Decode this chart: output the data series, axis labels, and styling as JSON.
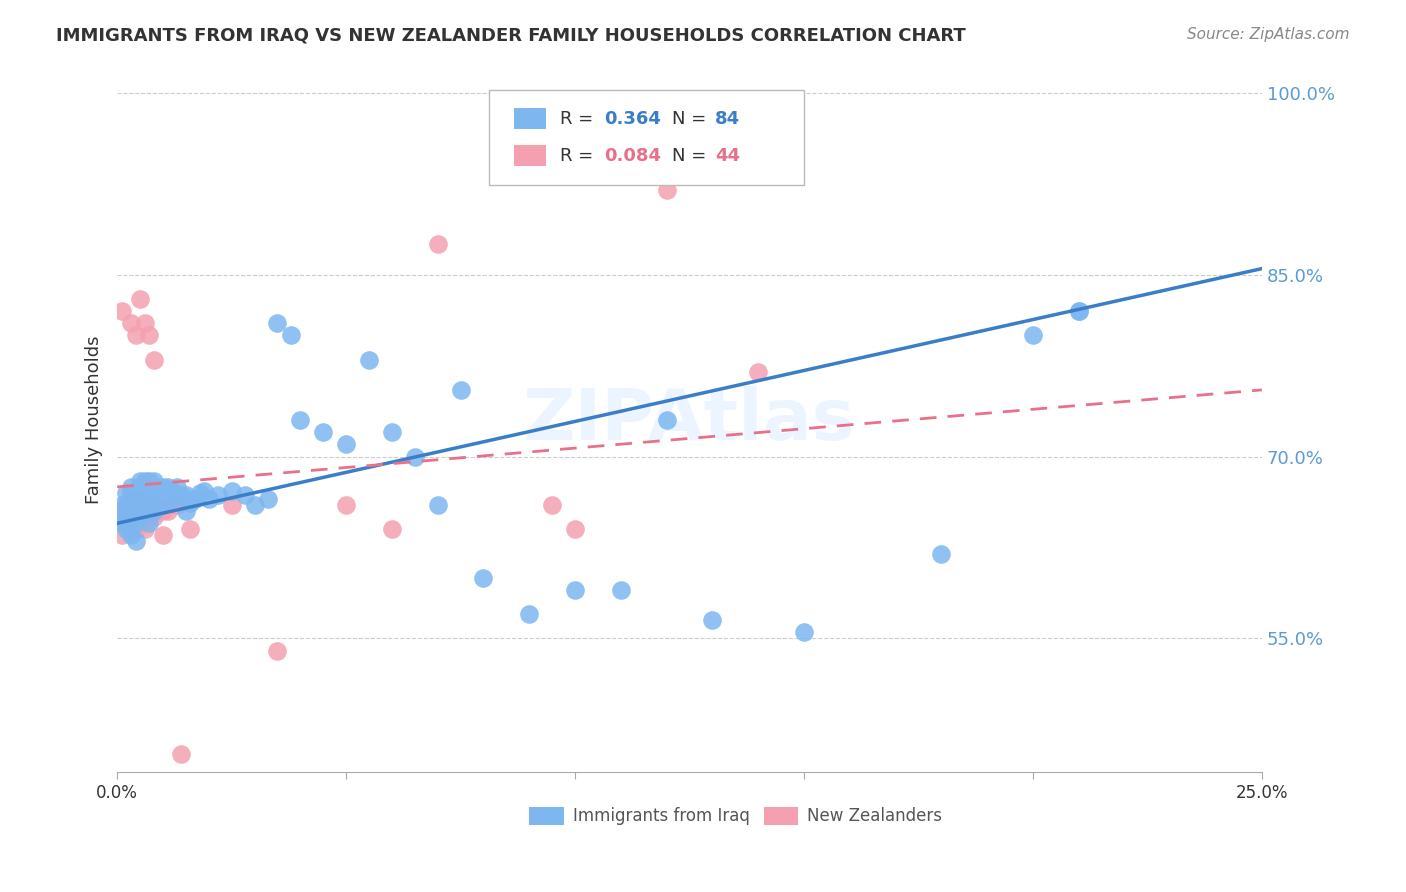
{
  "title": "IMMIGRANTS FROM IRAQ VS NEW ZEALANDER FAMILY HOUSEHOLDS CORRELATION CHART",
  "source": "Source: ZipAtlas.com",
  "ylabel": "Family Households",
  "x_min": 0.0,
  "x_max": 0.25,
  "y_min": 0.44,
  "y_max": 1.02,
  "x_ticks": [
    0.0,
    0.05,
    0.1,
    0.15,
    0.2,
    0.25
  ],
  "x_tick_labels": [
    "0.0%",
    "",
    "",
    "",
    "",
    "25.0%"
  ],
  "y_ticks": [
    0.55,
    0.7,
    0.85,
    1.0
  ],
  "y_tick_labels": [
    "55.0%",
    "70.0%",
    "85.0%",
    "100.0%"
  ],
  "grid_color": "#cccccc",
  "watermark": "ZIPAtlas",
  "blue_color": "#7EB6F0",
  "pink_color": "#F4A0B0",
  "blue_line_color": "#3B7EC8",
  "pink_line_color": "#E8708A",
  "legend_R1": "R = 0.364",
  "legend_N1": "N = 84",
  "legend_R2": "R = 0.084",
  "legend_N2": "N = 44",
  "blue_trend_x0": 0.0,
  "blue_trend_y0": 0.645,
  "blue_trend_x1": 0.25,
  "blue_trend_y1": 0.855,
  "pink_trend_x0": 0.0,
  "pink_trend_y0": 0.675,
  "pink_trend_x1": 0.25,
  "pink_trend_y1": 0.755,
  "blue_x": [
    0.001,
    0.001,
    0.001,
    0.002,
    0.002,
    0.002,
    0.002,
    0.002,
    0.003,
    0.003,
    0.003,
    0.003,
    0.003,
    0.003,
    0.003,
    0.004,
    0.004,
    0.004,
    0.004,
    0.004,
    0.005,
    0.005,
    0.005,
    0.005,
    0.005,
    0.005,
    0.006,
    0.006,
    0.006,
    0.006,
    0.007,
    0.007,
    0.007,
    0.007,
    0.008,
    0.008,
    0.008,
    0.008,
    0.009,
    0.009,
    0.009,
    0.01,
    0.01,
    0.01,
    0.011,
    0.011,
    0.012,
    0.012,
    0.013,
    0.013,
    0.014,
    0.015,
    0.015,
    0.016,
    0.017,
    0.018,
    0.019,
    0.02,
    0.022,
    0.025,
    0.028,
    0.03,
    0.033,
    0.038,
    0.04,
    0.045,
    0.05,
    0.06,
    0.065,
    0.07,
    0.08,
    0.09,
    0.1,
    0.11,
    0.13,
    0.15,
    0.18,
    0.2,
    0.21,
    0.21,
    0.035,
    0.055,
    0.075,
    0.12
  ],
  "blue_y": [
    0.645,
    0.655,
    0.66,
    0.64,
    0.645,
    0.655,
    0.66,
    0.67,
    0.635,
    0.645,
    0.65,
    0.66,
    0.665,
    0.67,
    0.675,
    0.63,
    0.645,
    0.655,
    0.66,
    0.67,
    0.65,
    0.655,
    0.66,
    0.67,
    0.675,
    0.68,
    0.655,
    0.66,
    0.665,
    0.68,
    0.645,
    0.655,
    0.665,
    0.68,
    0.655,
    0.665,
    0.67,
    0.68,
    0.66,
    0.665,
    0.675,
    0.66,
    0.668,
    0.675,
    0.665,
    0.675,
    0.665,
    0.672,
    0.668,
    0.675,
    0.668,
    0.655,
    0.668,
    0.662,
    0.665,
    0.67,
    0.672,
    0.665,
    0.668,
    0.672,
    0.668,
    0.66,
    0.665,
    0.8,
    0.73,
    0.72,
    0.71,
    0.72,
    0.7,
    0.66,
    0.6,
    0.57,
    0.59,
    0.59,
    0.565,
    0.555,
    0.62,
    0.8,
    0.82,
    0.82,
    0.81,
    0.78,
    0.755,
    0.73
  ],
  "pink_x": [
    0.001,
    0.001,
    0.002,
    0.002,
    0.003,
    0.003,
    0.003,
    0.004,
    0.004,
    0.004,
    0.005,
    0.005,
    0.005,
    0.006,
    0.006,
    0.006,
    0.007,
    0.007,
    0.008,
    0.008,
    0.009,
    0.01,
    0.011,
    0.012,
    0.013,
    0.016,
    0.025,
    0.035,
    0.05,
    0.06,
    0.07,
    0.095,
    0.12,
    0.14,
    0.001,
    0.003,
    0.004,
    0.005,
    0.006,
    0.007,
    0.008,
    0.01,
    0.014,
    0.1
  ],
  "pink_y": [
    0.635,
    0.65,
    0.645,
    0.66,
    0.64,
    0.655,
    0.665,
    0.64,
    0.65,
    0.66,
    0.645,
    0.655,
    0.665,
    0.64,
    0.65,
    0.66,
    0.65,
    0.66,
    0.65,
    0.66,
    0.655,
    0.655,
    0.655,
    0.66,
    0.66,
    0.64,
    0.66,
    0.54,
    0.66,
    0.64,
    0.875,
    0.66,
    0.92,
    0.77,
    0.82,
    0.81,
    0.8,
    0.83,
    0.81,
    0.8,
    0.78,
    0.635,
    0.455,
    0.64
  ]
}
